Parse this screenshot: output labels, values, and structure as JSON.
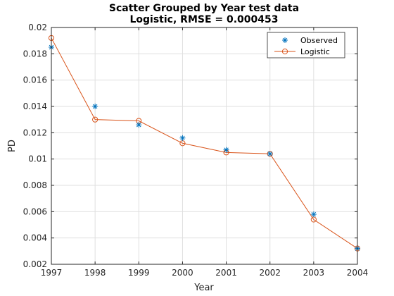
{
  "colors": {
    "observed": "#0072bd",
    "logistic": "#d95319",
    "grid": "#dfdfdf",
    "axis": "#262626"
  },
  "chart_data": {
    "type": "line",
    "title": "Scatter Grouped by Year test data",
    "subtitle": "Logistic, RMSE = 0.000453",
    "xlabel": "Year",
    "ylabel": "PD",
    "xlim": [
      1997,
      2004
    ],
    "ylim": [
      0.002,
      0.02
    ],
    "x_ticks": [
      "1997",
      "1998",
      "1999",
      "2000",
      "2001",
      "2002",
      "2003",
      "2004"
    ],
    "y_ticks": [
      "0.002",
      "0.004",
      "0.006",
      "0.008",
      "0.01",
      "0.012",
      "0.014",
      "0.016",
      "0.018",
      "0.02"
    ],
    "grid": true,
    "legend_position": "top-right",
    "x": [
      1997,
      1998,
      1999,
      2000,
      2001,
      2002,
      2003,
      2004
    ],
    "series": [
      {
        "name": "Observed",
        "marker": "asterisk",
        "line": "none",
        "values": [
          0.0185,
          0.014,
          0.0126,
          0.0116,
          0.0107,
          0.0104,
          0.0058,
          0.0032
        ]
      },
      {
        "name": "Logistic",
        "marker": "circle",
        "line": "solid",
        "values": [
          0.0192,
          0.013,
          0.0129,
          0.0112,
          0.0105,
          0.0104,
          0.0054,
          0.0032
        ]
      }
    ]
  }
}
